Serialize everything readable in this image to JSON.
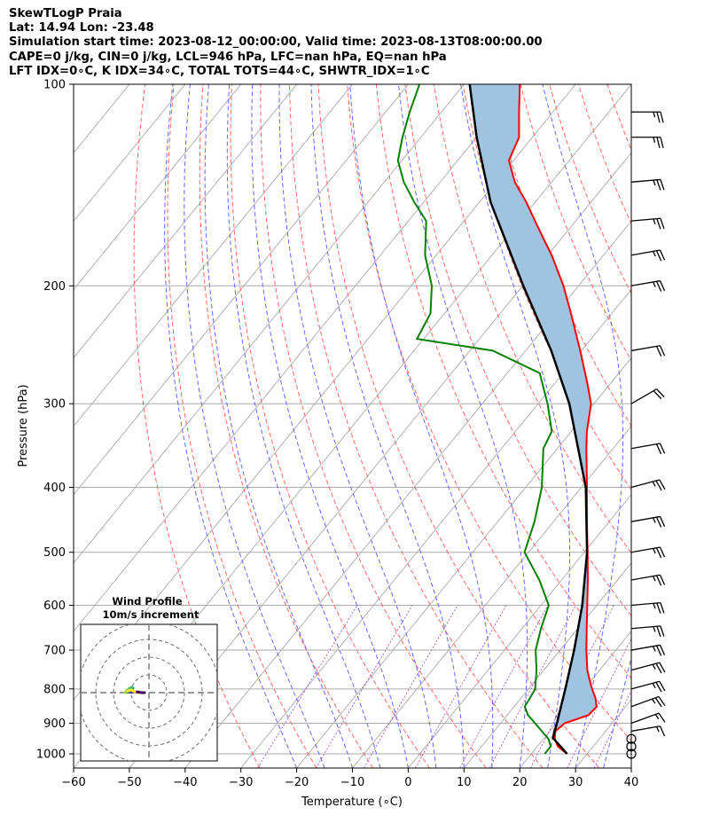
{
  "header": {
    "line1": "SkewTLogP Praia",
    "line2": "Lat: 14.94   Lon: -23.48",
    "line3": "Simulation start time: 2023-08-12_00:00:00, Valid time: 2023-08-13T08:00:00.00",
    "line4": "CAPE=0 j/kg, CIN=0 j/kg, LCL=946 hPa, LFC=nan hPa, EQ=nan hPa",
    "line5": "LFT IDX=0∘C, K IDX=34∘C, TOTAL TOTS=44∘C, SHWTR_IDX=1∘C"
  },
  "colors": {
    "temperature": "#ff0000",
    "dewpoint": "#008000",
    "parcel": "#000000",
    "shade": "#a0c4df",
    "dry_adiabat": "#ff6666",
    "moist_adiabat": "#6666ff",
    "mixing_ratio": "#9944cc",
    "isotherm": "#aaaaaa"
  },
  "chart_data": {
    "type": "skewt",
    "xlabel": "Temperature (∘C)",
    "ylabel": "Pressure (hPa)",
    "xlim": [
      -60,
      40
    ],
    "ylim": [
      1050,
      100
    ],
    "x_ticks": [
      -60,
      -50,
      -40,
      -30,
      -20,
      -10,
      0,
      10,
      20,
      30,
      40
    ],
    "y_ticks": [
      100,
      200,
      300,
      400,
      500,
      600,
      700,
      800,
      900,
      1000
    ],
    "grid": true,
    "temperature": {
      "p": [
        1000,
        975,
        950,
        925,
        900,
        875,
        850,
        825,
        800,
        775,
        750,
        700,
        650,
        600,
        550,
        500,
        450,
        400,
        350,
        330,
        300,
        280,
        250,
        220,
        200,
        180,
        170,
        160,
        150,
        140,
        130,
        120,
        110,
        100
      ],
      "t": [
        26.4,
        23.7,
        22,
        21,
        21.5,
        24.6,
        24.8,
        23.3,
        21.4,
        19.6,
        17.8,
        14.7,
        11.6,
        8.3,
        4.7,
        0.6,
        -4,
        -9,
        -14.8,
        -17.2,
        -20.5,
        -24.1,
        -30.2,
        -37.3,
        -42.7,
        -49.3,
        -53.2,
        -57.3,
        -61.6,
        -66.6,
        -70.8,
        -72.4,
        -76.1,
        -80
      ]
    },
    "dewpoint": {
      "p": [
        1000,
        975,
        950,
        900,
        875,
        850,
        825,
        800,
        750,
        700,
        650,
        600,
        550,
        500,
        450,
        400,
        350,
        330,
        300,
        270,
        250,
        240,
        220,
        200,
        180,
        160,
        150,
        140,
        130,
        120,
        110,
        100
      ],
      "td": [
        22.4,
        22.4,
        20.9,
        16.2,
        13.7,
        11.9,
        11.6,
        11.2,
        8.7,
        5.6,
        3.4,
        1.4,
        -4,
        -10.7,
        -13.4,
        -17.1,
        -22.5,
        -23.5,
        -28.3,
        -34.2,
        -45.9,
        -61.2,
        -62.5,
        -66.3,
        -72,
        -76.8,
        -81.7,
        -86.5,
        -90.7,
        -93.3,
        -95.7,
        -98
      ]
    },
    "parcel": {
      "p": [
        1000,
        946,
        900,
        850,
        800,
        700,
        600,
        500,
        400,
        300,
        250,
        200,
        150,
        120,
        100
      ],
      "t": [
        26.4,
        21.5,
        20.1,
        18.4,
        16.6,
        12.5,
        7.4,
        0.5,
        -9.2,
        -24.4,
        -35.4,
        -49.9,
        -68,
        -80,
        -89
      ]
    },
    "cape_cin": {
      "CAPE": "0 j/kg",
      "CIN": "0 j/kg",
      "LCL": "946 hPa",
      "LFC": "nan hPa",
      "EQ": "nan hPa"
    },
    "wind_barbs": {
      "p": [
        1000,
        975,
        950,
        925,
        900,
        850,
        800,
        750,
        700,
        650,
        600,
        550,
        500,
        450,
        400,
        350,
        300,
        250,
        200,
        180,
        160,
        140,
        120,
        110
      ],
      "speed_kt": [
        0,
        0,
        0,
        15,
        15,
        25,
        25,
        25,
        25,
        25,
        25,
        25,
        25,
        25,
        25,
        20,
        20,
        20,
        25,
        25,
        25,
        25,
        25,
        25
      ],
      "direction_deg": [
        0,
        0,
        0,
        80,
        70,
        70,
        75,
        75,
        80,
        85,
        85,
        80,
        80,
        80,
        75,
        80,
        60,
        80,
        80,
        80,
        85,
        85,
        90,
        90
      ]
    },
    "hodograph": {
      "title": "Wind Profile",
      "subtitle": "10m/s increment",
      "u": [
        -2.5,
        -4,
        -6,
        -8,
        -10,
        -11,
        -12.5,
        -13,
        -12,
        -10,
        -9,
        -9.8,
        -11,
        -12.7,
        -13.4,
        -12,
        -10,
        -8
      ],
      "v": [
        0,
        0,
        0.3,
        0.5,
        0.2,
        0.4,
        0.2,
        0.5,
        1,
        1.8,
        2.5,
        3,
        2.4,
        1.2,
        0,
        1,
        1.5,
        0.5
      ]
    }
  }
}
